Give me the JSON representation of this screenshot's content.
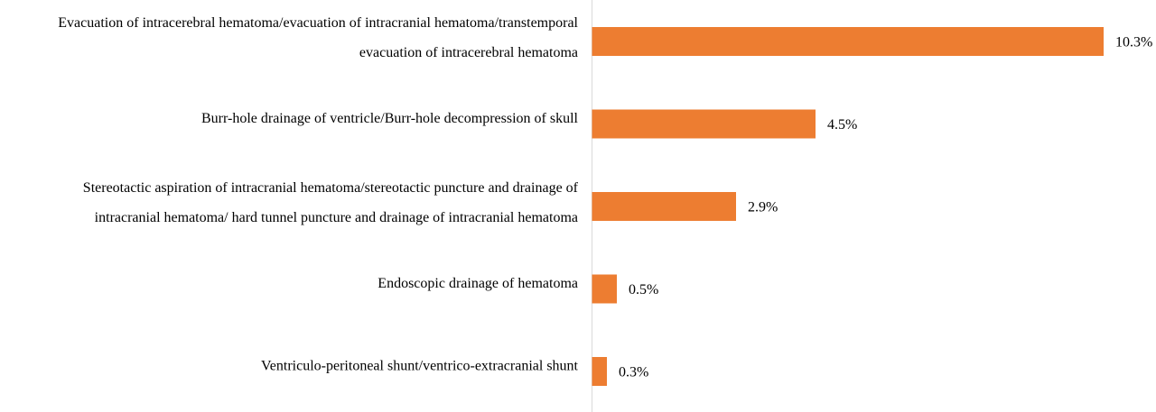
{
  "chart_data": {
    "type": "bar",
    "orientation": "horizontal",
    "categories": [
      [
        "Evacuation of intracerebral hematoma/evacuation of intracranial hematoma/transtemporal",
        "evacuation of intracerebral hematoma"
      ],
      [
        "Burr-hole drainage of ventricle/Burr-hole decompression of skull"
      ],
      [
        "Stereotactic aspiration of intracranial hematoma/stereotactic puncture and drainage of",
        "intracranial hematoma/ hard tunnel puncture and drainage of intracranial hematoma"
      ],
      [
        "Endoscopic drainage of hematoma"
      ],
      [
        "Ventriculo-peritoneal shunt/ventrico-extracranial shunt"
      ]
    ],
    "values": [
      10.3,
      4.5,
      2.9,
      0.5,
      0.3
    ],
    "data_labels": [
      "10.3%",
      "4.5%",
      "2.9%",
      "0.5%",
      "0.3%"
    ],
    "unit": "%",
    "bar_color": "#ED7D31",
    "axis_line_color": "#D9D9D9",
    "grid": false,
    "legend": "none"
  }
}
